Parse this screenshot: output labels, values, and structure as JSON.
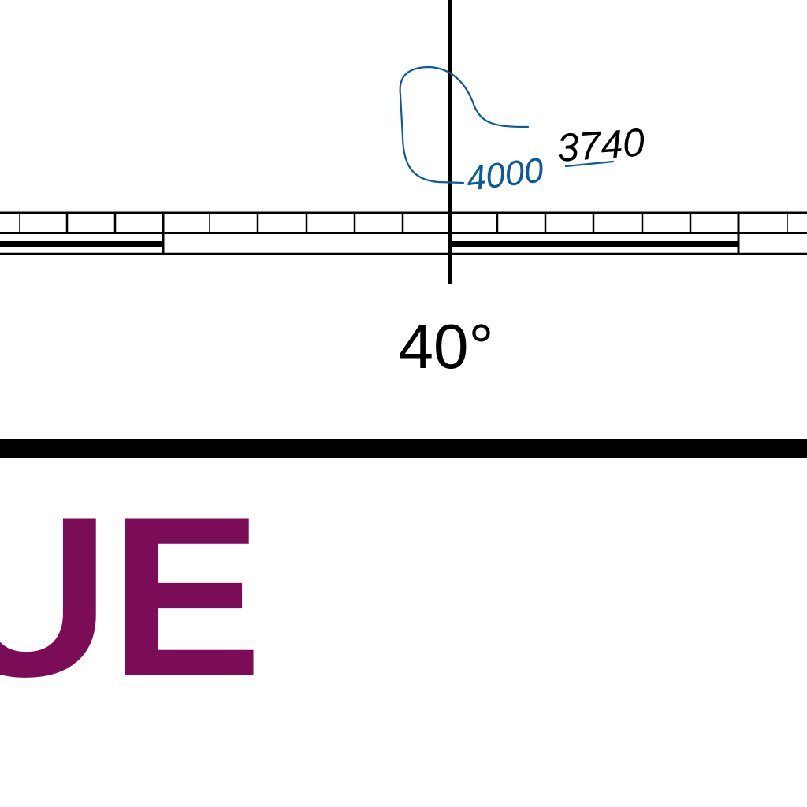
{
  "map": {
    "meridian_label": "40°",
    "contour": {
      "label": "4000",
      "color": "#0a5a9c"
    },
    "spot_height": {
      "label": "3740"
    },
    "title_fragment": {
      "text": "UE",
      "color": "#7b0c57"
    },
    "colors": {
      "ink": "#000000",
      "background": "#ffffff"
    }
  }
}
